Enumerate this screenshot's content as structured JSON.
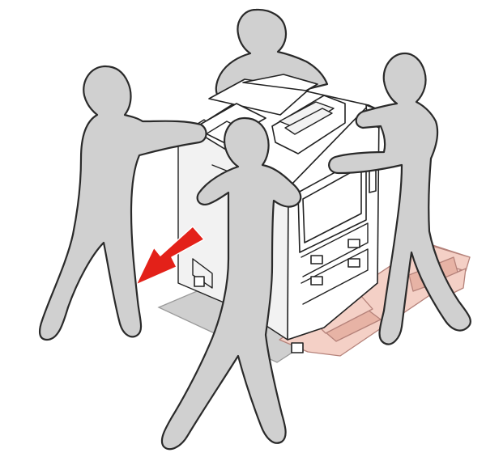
{
  "colors": {
    "person_fill": "#d0d0d0",
    "person_stroke": "#2a2a2a",
    "box_fill": "#f4d0c6",
    "box_dark": "#e7b3a5",
    "box_stroke": "#b5827a",
    "sheet_fill": "#cfcfcf",
    "sheet_stroke": "#9a9a9a",
    "arrow_fill": "#e32119"
  },
  "figures": [
    {
      "name": "person-back"
    },
    {
      "name": "person-left"
    },
    {
      "name": "person-right"
    },
    {
      "name": "person-front"
    }
  ],
  "objects": {
    "machine": "multifunction-printer",
    "pallet": "cardboard-packing-base",
    "direction_arrow": "move-direction-arrow"
  }
}
